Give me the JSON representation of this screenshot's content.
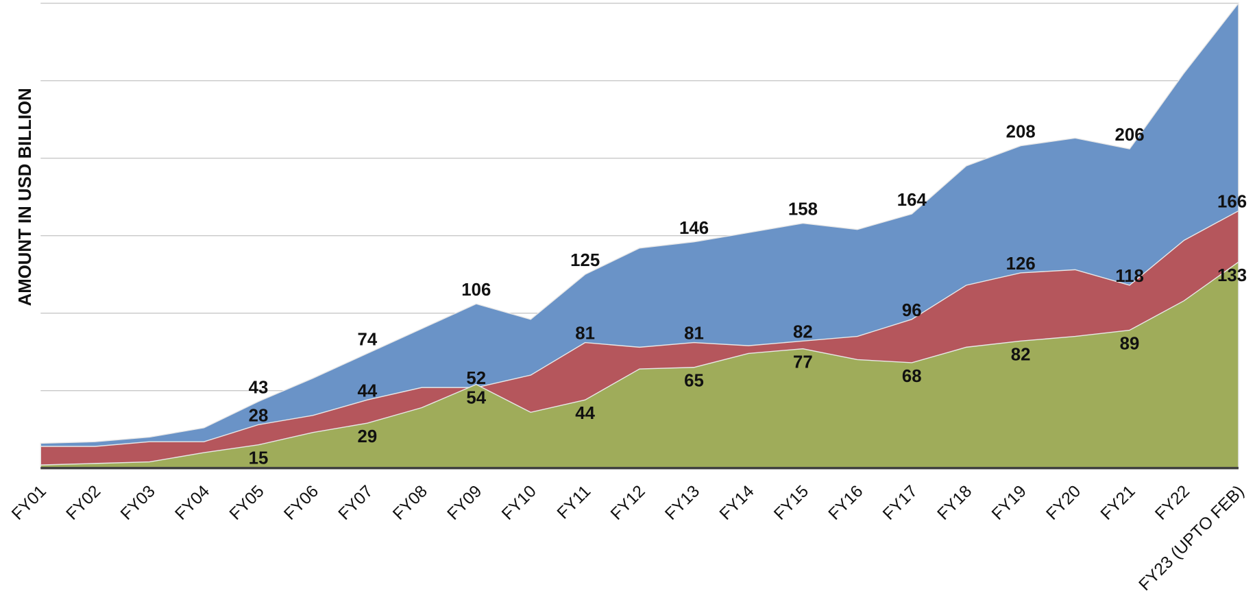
{
  "chart_data": {
    "type": "area",
    "y_label": "AMOUNT IN USD BILLION",
    "categories": [
      "FY01",
      "FY02",
      "FY03",
      "FY04",
      "FY05",
      "FY06",
      "FY07",
      "FY08",
      "FY09",
      "FY10",
      "FY11",
      "FY12",
      "FY13",
      "FY14",
      "FY15",
      "FY16",
      "FY17",
      "FY18",
      "FY19",
      "FY20",
      "FY21",
      "FY22",
      "FY23 (UPTO FEB)"
    ],
    "ylim": [
      0,
      300
    ],
    "yticks": [
      0,
      50,
      100,
      150,
      200,
      250,
      300
    ],
    "grid": true,
    "series": [
      {
        "color": "#6a93c7",
        "values": [
          16,
          17,
          20,
          26,
          43,
          58,
          74,
          90,
          106,
          96,
          125,
          142,
          146,
          152,
          158,
          154,
          164,
          195,
          208,
          213,
          206,
          255,
          300
        ],
        "value_labels": [
          null,
          null,
          null,
          null,
          "43",
          null,
          "74",
          null,
          "106",
          null,
          "125",
          null,
          "146",
          null,
          "158",
          null,
          "164",
          null,
          "208",
          null,
          "206",
          null,
          "300"
        ]
      },
      {
        "color": "#b5565c",
        "values": [
          14,
          14,
          17,
          17,
          28,
          34,
          44,
          52,
          52,
          60,
          81,
          78,
          81,
          79,
          82,
          85,
          96,
          118,
          126,
          128,
          118,
          147,
          166
        ],
        "value_labels": [
          null,
          null,
          null,
          null,
          "28",
          null,
          "44",
          null,
          "52",
          null,
          "81",
          null,
          "81",
          null,
          "82",
          null,
          "96",
          null,
          "126",
          null,
          "118",
          null,
          "166"
        ]
      },
      {
        "color": "#9fac5a",
        "values": [
          2,
          3,
          4,
          10,
          15,
          23,
          29,
          39,
          54,
          36,
          44,
          64,
          65,
          74,
          77,
          70,
          68,
          78,
          82,
          85,
          89,
          108,
          133
        ],
        "value_labels": [
          null,
          null,
          null,
          null,
          "15",
          null,
          "29",
          null,
          "54",
          null,
          "44",
          null,
          "65",
          null,
          "77",
          null,
          "68",
          null,
          "82",
          null,
          "89",
          null,
          "133"
        ]
      }
    ]
  }
}
